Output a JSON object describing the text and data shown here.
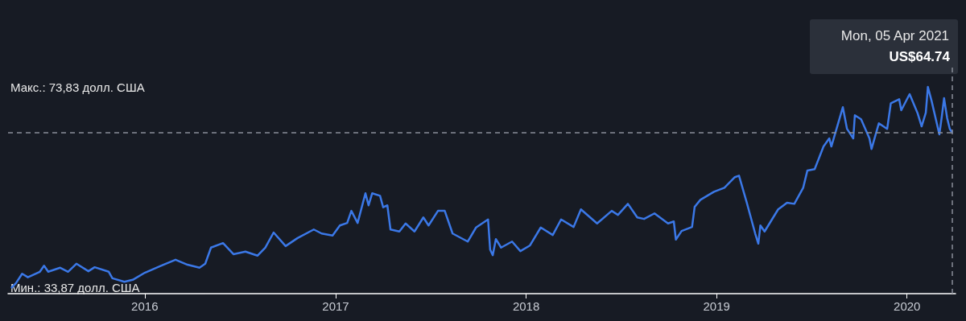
{
  "chart_data": {
    "type": "line",
    "x": [
      "2015-04-20",
      "2015-04-29",
      "2015-05-11",
      "2015-05-22",
      "2015-06-14",
      "2015-06-22",
      "2015-06-30",
      "2015-07-23",
      "2015-08-07",
      "2015-08-23",
      "2015-09-15",
      "2015-09-27",
      "2015-10-24",
      "2015-10-31",
      "2015-11-23",
      "2015-12-09",
      "2016-01-01",
      "2016-02-01",
      "2016-02-29",
      "2016-03-23",
      "2016-04-15",
      "2016-04-26",
      "2016-05-07",
      "2016-05-30",
      "2016-06-19",
      "2016-07-12",
      "2016-08-04",
      "2016-08-19",
      "2016-09-04",
      "2016-09-27",
      "2016-10-20",
      "2016-11-20",
      "2016-12-05",
      "2016-12-26",
      "2017-01-09",
      "2017-01-23",
      "2017-01-31",
      "2017-02-12",
      "2017-02-27",
      "2017-03-05",
      "2017-03-12",
      "2017-03-27",
      "2017-04-02",
      "2017-04-10",
      "2017-04-16",
      "2017-05-03",
      "2017-05-15",
      "2017-06-01",
      "2017-06-18",
      "2017-06-28",
      "2017-07-16",
      "2017-07-29",
      "2017-08-13",
      "2017-09-11",
      "2017-09-27",
      "2017-10-20",
      "2017-10-24",
      "2017-10-29",
      "2017-11-04",
      "2017-11-14",
      "2017-12-05",
      "2017-12-21",
      "2018-01-08",
      "2018-01-29",
      "2018-02-21",
      "2018-03-09",
      "2018-04-02",
      "2018-04-16",
      "2018-05-17",
      "2018-06-14",
      "2018-06-26",
      "2018-07-15",
      "2018-08-02",
      "2018-08-15",
      "2018-09-04",
      "2018-09-30",
      "2018-10-11",
      "2018-10-15",
      "2018-10-26",
      "2018-11-15",
      "2018-11-20",
      "2018-12-01",
      "2018-12-27",
      "2019-01-16",
      "2019-02-05",
      "2019-02-13",
      "2019-02-28",
      "2019-03-16",
      "2019-03-22",
      "2019-03-26",
      "2019-04-03",
      "2019-04-29",
      "2019-05-16",
      "2019-05-30",
      "2019-06-16",
      "2019-06-24",
      "2019-07-08",
      "2019-07-25",
      "2019-08-05",
      "2019-08-09",
      "2019-08-31",
      "2019-09-08",
      "2019-09-20",
      "2019-09-23",
      "2019-10-05",
      "2019-10-21",
      "2019-10-25",
      "2019-11-08",
      "2019-11-24",
      "2019-12-01",
      "2019-12-17",
      "2019-12-21",
      "2020-01-06",
      "2020-01-21",
      "2020-01-29",
      "2020-02-06",
      "2020-02-10",
      "2020-02-17",
      "2020-03-03",
      "2020-03-08",
      "2020-03-12",
      "2020-03-18",
      "2020-03-23",
      "2020-03-28"
    ],
    "series": [
      {
        "color": "#3b78e7",
        "values": [
          33.87,
          34.8,
          36.7,
          36.0,
          37.1,
          38.3,
          37.1,
          37.9,
          37.1,
          38.7,
          37.2,
          38.0,
          37.1,
          35.8,
          35.1,
          35.5,
          36.9,
          38.3,
          39.5,
          38.5,
          37.9,
          38.7,
          41.9,
          42.8,
          40.6,
          41.1,
          40.3,
          41.9,
          44.9,
          42.2,
          43.8,
          45.5,
          44.7,
          44.3,
          46.3,
          46.8,
          49.2,
          46.8,
          52.7,
          50.3,
          52.7,
          52.2,
          49.9,
          50.3,
          45.5,
          45.1,
          46.7,
          45.1,
          47.9,
          46.3,
          49.2,
          49.2,
          44.7,
          43.1,
          45.9,
          47.5,
          41.5,
          40.4,
          43.6,
          41.9,
          43.1,
          41.2,
          42.3,
          45.9,
          44.4,
          47.5,
          46.0,
          49.5,
          46.7,
          49.2,
          48.4,
          50.6,
          47.9,
          47.6,
          48.7,
          46.7,
          47.1,
          43.5,
          45.2,
          46.0,
          50.0,
          51.4,
          53.0,
          53.8,
          55.9,
          56.2,
          50.8,
          44.7,
          42.7,
          46.3,
          45.1,
          49.5,
          50.8,
          50.6,
          53.8,
          57.2,
          57.5,
          62.0,
          63.6,
          62.0,
          69.8,
          65.5,
          63.6,
          68.2,
          67.4,
          63.6,
          61.5,
          66.6,
          65.5,
          70.6,
          71.4,
          69.2,
          72.4,
          68.7,
          66.0,
          68.7,
          73.83,
          71.1,
          64.4,
          68.2,
          71.6,
          67.6,
          65.5,
          64.74
        ]
      }
    ],
    "xlim": [
      "2015-04-14",
      "2020-04-03"
    ],
    "ylim": [
      32.75,
      78
    ],
    "xticks": [
      "2016",
      "2017",
      "2018",
      "2019",
      "2020"
    ],
    "yticks": [
      {
        "value": 33.87,
        "label": "Мин.: 33,87 долл. США"
      },
      {
        "value": 73.83,
        "label": "Макс.: 73,83 долл. США"
      }
    ],
    "grid": false,
    "marker": "none",
    "line_style": "solid",
    "ref_lines": [
      {
        "axis": "y",
        "value": 64.74,
        "label": null,
        "color": "#8a8f99",
        "line_style": "dashed"
      },
      {
        "axis": "x",
        "value": "2020-03-28",
        "label": null,
        "color": "#8a8f99",
        "line_style": "dashed"
      }
    ],
    "annotations": [
      "Mon, 05 Apr 2021",
      "US$64.74"
    ]
  }
}
